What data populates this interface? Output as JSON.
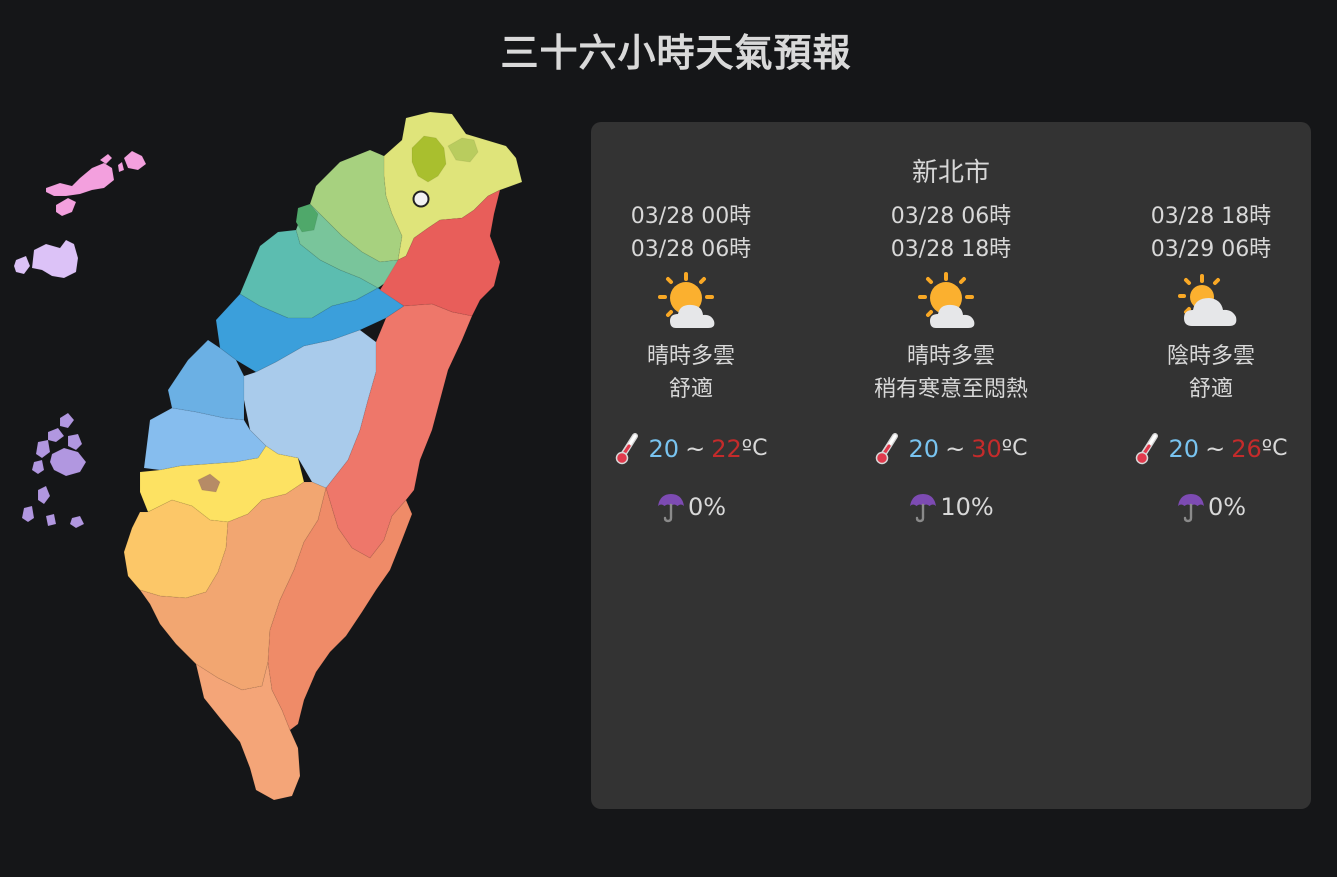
{
  "page": {
    "title": "三十六小時天氣預報"
  },
  "map": {
    "selected_marker": "selected-location-marker",
    "regions": [
      {
        "name": "基隆市",
        "color": "#b9cc5e"
      },
      {
        "name": "臺北市",
        "color": "#a9bf2e"
      },
      {
        "name": "新北市",
        "color": "#dfe47a"
      },
      {
        "name": "桃園市",
        "color": "#a7d17f"
      },
      {
        "name": "新竹縣",
        "color": "#79c59b"
      },
      {
        "name": "新竹市",
        "color": "#4fa86a"
      },
      {
        "name": "苗栗縣",
        "color": "#5cbdb0"
      },
      {
        "name": "臺中市",
        "color": "#3b9fdb"
      },
      {
        "name": "彰化縣",
        "color": "#6bb0e4"
      },
      {
        "name": "南投縣",
        "color": "#a9cbeb"
      },
      {
        "name": "雲林縣",
        "color": "#86bdee"
      },
      {
        "name": "嘉義縣",
        "color": "#fde262"
      },
      {
        "name": "嘉義市",
        "color": "#b68b66"
      },
      {
        "name": "臺南市",
        "color": "#fcc768"
      },
      {
        "name": "高雄市",
        "color": "#f2a671"
      },
      {
        "name": "屏東縣",
        "color": "#f4a578"
      },
      {
        "name": "宜蘭縣",
        "color": "#e85e5a"
      },
      {
        "name": "花蓮縣",
        "color": "#ee776a"
      },
      {
        "name": "臺東縣",
        "color": "#ef8b68"
      },
      {
        "name": "連江縣",
        "color": "#f3a0de"
      },
      {
        "name": "金門縣",
        "color": "#dcc2f7"
      },
      {
        "name": "澎湖縣",
        "color": "#b197e0"
      }
    ]
  },
  "forecast": {
    "city": "新北市",
    "periods": [
      {
        "start": "03/28 00時",
        "end": "03/28 06時",
        "icon": "partly-cloudy-sun-icon",
        "weather": "晴時多雲",
        "comfort": "舒適",
        "min_temp": "20",
        "max_temp": "22",
        "unit": "ºC",
        "rain": "0%"
      },
      {
        "start": "03/28 06時",
        "end": "03/28 18時",
        "icon": "partly-cloudy-sun-icon",
        "weather": "晴時多雲",
        "comfort": "稍有寒意至悶熱",
        "min_temp": "20",
        "max_temp": "30",
        "unit": "ºC",
        "rain": "10%"
      },
      {
        "start": "03/28 18時",
        "end": "03/29 06時",
        "icon": "cloudy-sun-icon",
        "weather": "陰時多雲",
        "comfort": "舒適",
        "min_temp": "20",
        "max_temp": "26",
        "unit": "ºC",
        "rain": "0%"
      }
    ],
    "temp_separator": "~",
    "colors": {
      "min": "#79c4f0",
      "max": "#c42b2b",
      "panel": "#333333",
      "background": "#151618"
    }
  }
}
